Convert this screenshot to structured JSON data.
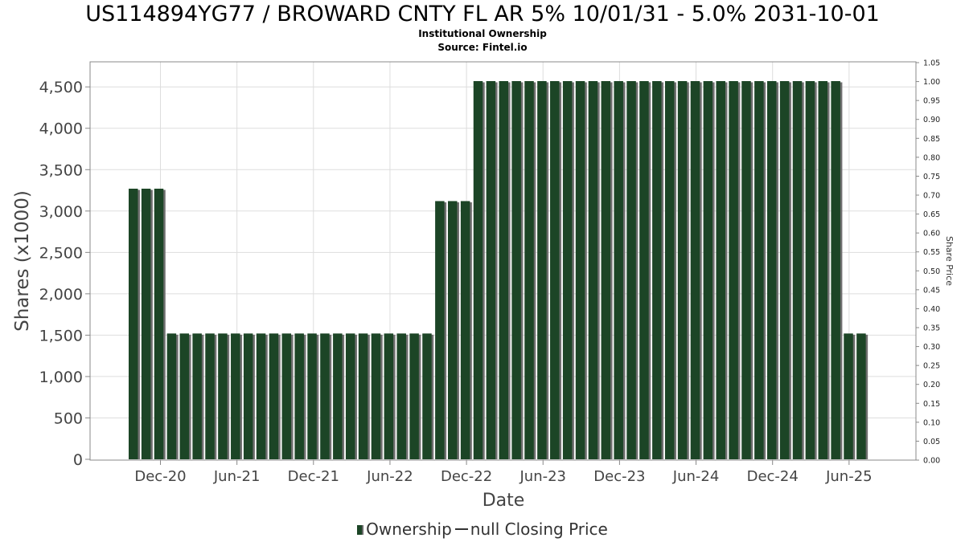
{
  "header": {
    "title": "US114894YG77 / BROWARD CNTY FL AR 5% 10/01/31 - 5.0% 2031-10-01",
    "subtitle": "Institutional Ownership",
    "source": "Source: Fintel.io"
  },
  "legend": {
    "ownership": "Ownership",
    "price": "null Closing Price"
  },
  "colors": {
    "bar": "#1c4526",
    "bar_shadow": "#6f6f6f",
    "grid": "#dddddd"
  },
  "chart_data": {
    "type": "bar",
    "title": "US114894YG77 / BROWARD CNTY FL AR 5% 10/01/31 - 5.0% 2031-10-01",
    "xlabel": "Date",
    "ylabel": "Shares (x1000)",
    "y2label": "Share Price",
    "ylim": [
      0,
      4800
    ],
    "y2lim": [
      0,
      1.05
    ],
    "yticks": [
      "0",
      "500",
      "1,000",
      "1,500",
      "2,000",
      "2,500",
      "3,000",
      "3,500",
      "4,000",
      "4,500"
    ],
    "y2ticks": [
      "0.00",
      "0.05",
      "0.10",
      "0.15",
      "0.20",
      "0.25",
      "0.30",
      "0.35",
      "0.40",
      "0.45",
      "0.50",
      "0.55",
      "0.60",
      "0.65",
      "0.70",
      "0.75",
      "0.80",
      "0.85",
      "0.90",
      "0.95",
      "1.00",
      "1.05"
    ],
    "xticks": [
      "Dec-20",
      "Jun-21",
      "Dec-21",
      "Jun-22",
      "Dec-22",
      "Jun-23",
      "Dec-23",
      "Jun-24",
      "Dec-24",
      "Jun-25"
    ],
    "grid": true,
    "legend_position": "bottom",
    "series": [
      {
        "name": "Ownership",
        "values": [
          3270,
          3270,
          3270,
          1520,
          1520,
          1520,
          1520,
          1520,
          1520,
          1520,
          1520,
          1520,
          1520,
          1520,
          1520,
          1520,
          1520,
          1520,
          1520,
          1520,
          1520,
          1520,
          1520,
          1520,
          3120,
          3120,
          3120,
          4570,
          4570,
          4570,
          4570,
          4570,
          4570,
          4570,
          4570,
          4570,
          4570,
          4570,
          4570,
          4570,
          4570,
          4570,
          4570,
          4570,
          4570,
          4570,
          4570,
          4570,
          4570,
          4570,
          4570,
          4570,
          4570,
          4570,
          4570,
          4570,
          1520,
          1520
        ]
      }
    ]
  }
}
